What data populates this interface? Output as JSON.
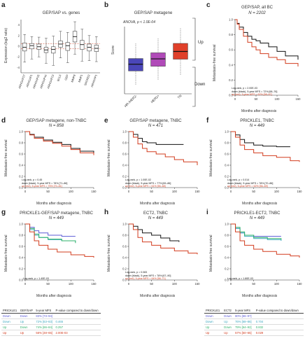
{
  "colors": {
    "black": "#111111",
    "red": "#d23c1e",
    "blue": "#5b5bd6",
    "green": "#2fb36b",
    "teal": "#40a9c0",
    "box_blue": "#4a46b8",
    "box_purple": "#b04ab8",
    "box_red": "#e0402a"
  },
  "panel_a": {
    "letter": "a",
    "title": "GEP/SAP vs. genes",
    "ylabel": "Expression (log2 ratio)",
    "tick_labels": [
      "ARHGAP27",
      "ARHGAP1",
      "ARHGAP25",
      "ARHGAP44",
      "ARHGAP23",
      "BCL6",
      "GEP",
      "MMP8",
      "MMP1",
      "SNORD3",
      "ARHGAP1"
    ],
    "yticks": [
      "4",
      "2",
      "0",
      "-2",
      "-4"
    ]
  },
  "panel_b": {
    "letter": "b",
    "title": "GEP/SAP metagene",
    "annotation": "ANOVA, p < 1.0E-04",
    "ylabel": "Score",
    "up_label": "Up",
    "down_label": "Down"
  },
  "panel_c": {
    "letter": "c",
    "title": "GEP/SAP, all BC",
    "n": "N = 2202",
    "ylabel": "Metastasis-free survival",
    "xlabel": "Months after diagnosis",
    "legend": [
      "Log-rank, p = 2.00E-03",
      "down (black), 5-year MFS = 72% [68–76]",
      "up (red), 5-year MFS = 62% [58–67]"
    ]
  },
  "panel_d": {
    "letter": "d",
    "title": "GEP/SAP metagene, non-TNBC",
    "n": "N = 858",
    "ylabel": "Metastasis-free survival",
    "xlabel": "Months after diagnosis",
    "legend": [
      "Log-rank, p = 0.45",
      "down (black), 5-year MFS = 78% [71–86]",
      "up (red), 5-year MFS = 75% [70–81]"
    ]
  },
  "panel_e": {
    "letter": "e",
    "title": "GEP/SAP metagene, TNBC",
    "n": "N = 471",
    "ylabel": "Metastasis-free survival",
    "xlabel": "Months after diagnosis",
    "legend": [
      "Log-rank, p = 1.00E-02",
      "down (black), 5-year MFS = 77% [69–86]",
      "up (red), 5-year MFS = 61% [55–68]"
    ]
  },
  "panel_f": {
    "letter": "f",
    "title": "PRICKLE1, TNBC",
    "n": "N = 449",
    "ylabel": "Metastasis-free survival",
    "xlabel": "Months after diagnosis",
    "legend": [
      "Log-rank, p = 0.014",
      "down (black), 5-year MFS = 78% [70–86]",
      "up (red), 5-year MFS = 62% [56–69]"
    ]
  },
  "panel_g": {
    "letter": "g",
    "title": "PRICKLE1-GEF/SAP metagene, TNBC",
    "n": "N = 449",
    "ylabel": "Metastasis-free survival",
    "xlabel": "Months after diagnosis",
    "legend": [
      "Log-rank, p = 1.40E-03"
    ]
  },
  "panel_h": {
    "letter": "h",
    "title": "ECT2, TNBC",
    "n": "N = 449",
    "ylabel": "Metastasis-free survival",
    "xlabel": "Months after diagnosis",
    "legend": [
      "Log-rank, p = 0.083",
      "down (black), 5-year MFS = 78% [67–90]",
      "up (red), 5-year MFS = 64% [58–71]"
    ]
  },
  "panel_i": {
    "letter": "i",
    "title": "PRICKLE1-ECT2, TNBC",
    "n": "N = 449",
    "ylabel": "Metastasis-free survival",
    "xlabel": "Months after diagnosis",
    "legend": [
      "Log-rank, p = 1.80E-03"
    ]
  },
  "table_g": {
    "headers": [
      "PRICKLE1",
      "GEF/SAP",
      "5-year MFS",
      "P-value compared to down/down"
    ],
    "rows": [
      [
        "Down",
        "Down",
        "83% [73–94]",
        ""
      ],
      [
        "Down",
        "Up",
        "72% [63–83]",
        "0.465"
      ],
      [
        "Up",
        "Down",
        "74% [66–84]",
        "0.257"
      ],
      [
        "Up",
        "Up",
        "56% [48–65]",
        "2.00E-03"
      ]
    ]
  },
  "table_i": {
    "headers": [
      "PRICKLE1",
      "ECT2",
      "5-year MFS",
      "P-value compared to down/down"
    ],
    "rows": [
      [
        "Down",
        "Down",
        "80% [66–97]",
        ""
      ],
      [
        "Down",
        "Up",
        "76% [68–86]",
        "0.704"
      ],
      [
        "Up",
        "Down",
        "79% [64–92]",
        "0.832"
      ],
      [
        "Up",
        "Up",
        "57% [50–65]",
        "0.029"
      ]
    ]
  },
  "chart_data": [
    {
      "id": "a",
      "type": "box",
      "title": "GEP/SAP vs. genes",
      "ylabel": "Expression (log2 ratio)",
      "ylim": [
        -5,
        5
      ],
      "categories": [
        "ARHGAP27",
        "ARHGAP1",
        "ARHGAP25",
        "ARHGAP44",
        "ARHGAP23",
        "BCL6",
        "GEP",
        "MMP8",
        "MMP1",
        "SNORD3",
        "ARHGAP1"
      ],
      "boxes": [
        {
          "q1": -0.9,
          "median": -0.2,
          "q3": 0.6,
          "lo": -3.0,
          "hi": 2.2
        },
        {
          "q1": -0.5,
          "median": 0.1,
          "q3": 0.5,
          "lo": -2.4,
          "hi": 1.8
        },
        {
          "q1": -0.6,
          "median": -0.1,
          "q3": 0.4,
          "lo": -2.0,
          "hi": 1.7
        },
        {
          "q1": -1.2,
          "median": -0.7,
          "q3": -0.2,
          "lo": -3.2,
          "hi": 1.5
        },
        {
          "q1": -1.3,
          "median": -0.6,
          "q3": -0.1,
          "lo": -3.6,
          "hi": 1.9
        },
        {
          "q1": -0.2,
          "median": 0.4,
          "q3": 1.0,
          "lo": -2.2,
          "hi": 2.8
        },
        {
          "q1": -0.8,
          "median": 0.1,
          "q3": 0.7,
          "lo": -3.1,
          "hi": 2.6
        },
        {
          "q1": 0.8,
          "median": 1.8,
          "q3": 2.8,
          "lo": -1.5,
          "hi": 4.6
        },
        {
          "q1": -0.6,
          "median": 0.3,
          "q3": 1.1,
          "lo": -2.8,
          "hi": 3.2
        },
        {
          "q1": -0.9,
          "median": -0.2,
          "q3": 0.4,
          "lo": -2.7,
          "hi": 2.0
        },
        {
          "q1": -1.0,
          "median": -0.4,
          "q3": 0.2,
          "lo": -2.9,
          "hi": 1.8
        }
      ],
      "reference_lines": [
        0.5,
        -0.5
      ]
    },
    {
      "id": "b",
      "type": "box",
      "title": "GEP/SAP metagene",
      "ylabel": "Score",
      "categories": [
        "HR-/HER2-",
        "HER2+",
        "TN"
      ],
      "ylim": [
        -1.0,
        1.0
      ],
      "boxes": [
        {
          "q1": -0.32,
          "median": -0.12,
          "q3": 0.05,
          "lo": -0.75,
          "hi": 0.5,
          "color": "box_blue"
        },
        {
          "q1": -0.18,
          "median": 0.04,
          "q3": 0.22,
          "lo": -0.6,
          "hi": 0.65,
          "color": "box_purple"
        },
        {
          "q1": 0.03,
          "median": 0.26,
          "q3": 0.5,
          "lo": -0.45,
          "hi": 0.95,
          "color": "box_red"
        }
      ]
    },
    {
      "id": "c",
      "type": "line",
      "xlim": [
        0,
        150
      ],
      "ylim": [
        0,
        1.0
      ],
      "xticks": [
        0,
        50,
        100,
        150
      ],
      "yticks": [
        0,
        0.2,
        0.4,
        0.6,
        0.8,
        1.0
      ],
      "series": [
        {
          "name": "down",
          "color": "black",
          "x": [
            0,
            5,
            10,
            20,
            30,
            40,
            50,
            60,
            80,
            100,
            120,
            150
          ],
          "y": [
            1.0,
            0.95,
            0.9,
            0.83,
            0.78,
            0.74,
            0.72,
            0.69,
            0.64,
            0.58,
            0.52,
            0.47
          ]
        },
        {
          "name": "up",
          "color": "red",
          "x": [
            0,
            5,
            10,
            20,
            30,
            40,
            50,
            60,
            80,
            100,
            120,
            150
          ],
          "y": [
            1.0,
            0.94,
            0.87,
            0.78,
            0.7,
            0.64,
            0.6,
            0.55,
            0.5,
            0.47,
            0.42,
            0.38
          ]
        }
      ]
    },
    {
      "id": "d",
      "type": "line",
      "xlim": [
        0,
        150
      ],
      "ylim": [
        0,
        1.0
      ],
      "xticks": [
        0,
        50,
        100,
        150
      ],
      "yticks": [
        0,
        0.2,
        0.4,
        0.6,
        0.8,
        1.0
      ],
      "series": [
        {
          "name": "down",
          "color": "black",
          "x": [
            0,
            10,
            20,
            40,
            60,
            80,
            100,
            120,
            150
          ],
          "y": [
            1.0,
            0.95,
            0.9,
            0.85,
            0.81,
            0.77,
            0.7,
            0.65,
            0.62
          ]
        },
        {
          "name": "up",
          "color": "red",
          "x": [
            0,
            10,
            20,
            40,
            60,
            80,
            100,
            120,
            150
          ],
          "y": [
            1.0,
            0.94,
            0.88,
            0.83,
            0.79,
            0.74,
            0.68,
            0.62,
            0.58
          ]
        }
      ]
    },
    {
      "id": "e",
      "type": "line",
      "xlim": [
        0,
        150
      ],
      "ylim": [
        0,
        1.0
      ],
      "xticks": [
        0,
        50,
        100,
        150
      ],
      "yticks": [
        0,
        0.2,
        0.4,
        0.6,
        0.8,
        1.0
      ],
      "series": [
        {
          "name": "down",
          "color": "black",
          "x": [
            0,
            10,
            20,
            30,
            40,
            60,
            80,
            100,
            120
          ],
          "y": [
            1.0,
            0.95,
            0.88,
            0.82,
            0.8,
            0.77,
            0.77,
            0.77,
            0.77
          ]
        },
        {
          "name": "up",
          "color": "red",
          "x": [
            0,
            10,
            20,
            30,
            40,
            60,
            80,
            100,
            120,
            150
          ],
          "y": [
            1.0,
            0.9,
            0.78,
            0.7,
            0.64,
            0.6,
            0.55,
            0.5,
            0.46,
            0.4
          ]
        }
      ]
    },
    {
      "id": "f",
      "type": "line",
      "xlim": [
        0,
        150
      ],
      "ylim": [
        0,
        1.0
      ],
      "xticks": [
        0,
        50,
        100,
        150
      ],
      "yticks": [
        0,
        0.2,
        0.4,
        0.6,
        0.8,
        1.0
      ],
      "series": [
        {
          "name": "down",
          "color": "black",
          "x": [
            0,
            10,
            20,
            30,
            50,
            70,
            100,
            130
          ],
          "y": [
            1.0,
            0.94,
            0.86,
            0.8,
            0.76,
            0.74,
            0.73,
            0.73
          ]
        },
        {
          "name": "up",
          "color": "red",
          "x": [
            0,
            10,
            20,
            30,
            50,
            70,
            100,
            130,
            150
          ],
          "y": [
            1.0,
            0.9,
            0.76,
            0.68,
            0.62,
            0.57,
            0.54,
            0.48,
            0.46
          ]
        }
      ]
    },
    {
      "id": "g",
      "type": "line",
      "xlim": [
        0,
        150
      ],
      "ylim": [
        0,
        1.0
      ],
      "xticks": [
        0,
        50,
        100,
        150
      ],
      "yticks": [
        0,
        0.2,
        0.4,
        0.6,
        0.8,
        1.0
      ],
      "series": [
        {
          "name": "down/down",
          "color": "blue",
          "x": [
            0,
            10,
            20,
            30,
            50,
            80,
            110
          ],
          "y": [
            1.0,
            0.94,
            0.88,
            0.84,
            0.8,
            0.78,
            0.78
          ]
        },
        {
          "name": "down/up",
          "color": "teal",
          "x": [
            0,
            10,
            20,
            30,
            50,
            80,
            110
          ],
          "y": [
            1.0,
            0.9,
            0.8,
            0.76,
            0.72,
            0.7,
            0.68
          ]
        },
        {
          "name": "up/down",
          "color": "green",
          "x": [
            0,
            10,
            20,
            30,
            50,
            80,
            110
          ],
          "y": [
            1.0,
            0.92,
            0.82,
            0.76,
            0.73,
            0.7,
            0.66
          ]
        },
        {
          "name": "up/up",
          "color": "red",
          "x": [
            0,
            10,
            20,
            30,
            50,
            70,
            100,
            130,
            150
          ],
          "y": [
            1.0,
            0.86,
            0.7,
            0.62,
            0.55,
            0.5,
            0.45,
            0.42,
            0.4
          ]
        }
      ]
    },
    {
      "id": "h",
      "type": "line",
      "xlim": [
        0,
        150
      ],
      "ylim": [
        0,
        1.0
      ],
      "xticks": [
        0,
        50,
        100,
        150
      ],
      "yticks": [
        0,
        0.2,
        0.4,
        0.6,
        0.8,
        1.0
      ],
      "series": [
        {
          "name": "down",
          "color": "black",
          "x": [
            0,
            10,
            20,
            30,
            50,
            70,
            90,
            110
          ],
          "y": [
            1.0,
            0.96,
            0.9,
            0.84,
            0.8,
            0.75,
            0.7,
            0.68
          ]
        },
        {
          "name": "up",
          "color": "red",
          "x": [
            0,
            10,
            20,
            30,
            50,
            70,
            100,
            130,
            150
          ],
          "y": [
            1.0,
            0.9,
            0.76,
            0.68,
            0.62,
            0.57,
            0.52,
            0.48,
            0.46
          ]
        }
      ]
    },
    {
      "id": "i",
      "type": "line",
      "xlim": [
        0,
        150
      ],
      "ylim": [
        0,
        1.0
      ],
      "xticks": [
        0,
        50,
        100,
        150
      ],
      "yticks": [
        0,
        0.2,
        0.4,
        0.6,
        0.8,
        1.0
      ],
      "series": [
        {
          "name": "down/down",
          "color": "blue",
          "x": [
            0,
            10,
            20,
            30,
            50,
            80,
            110
          ],
          "y": [
            1.0,
            0.92,
            0.84,
            0.8,
            0.78,
            0.78,
            0.78
          ]
        },
        {
          "name": "down/up",
          "color": "teal",
          "x": [
            0,
            10,
            20,
            30,
            50,
            80,
            110
          ],
          "y": [
            1.0,
            0.92,
            0.84,
            0.78,
            0.74,
            0.72,
            0.7
          ]
        },
        {
          "name": "up/down",
          "color": "green",
          "x": [
            0,
            10,
            20,
            30,
            50,
            80,
            110
          ],
          "y": [
            1.0,
            0.94,
            0.86,
            0.8,
            0.76,
            0.74,
            0.72
          ]
        },
        {
          "name": "up/up",
          "color": "red",
          "x": [
            0,
            10,
            20,
            30,
            50,
            70,
            100,
            130,
            150
          ],
          "y": [
            1.0,
            0.86,
            0.7,
            0.62,
            0.55,
            0.51,
            0.46,
            0.43,
            0.4
          ]
        }
      ]
    }
  ]
}
